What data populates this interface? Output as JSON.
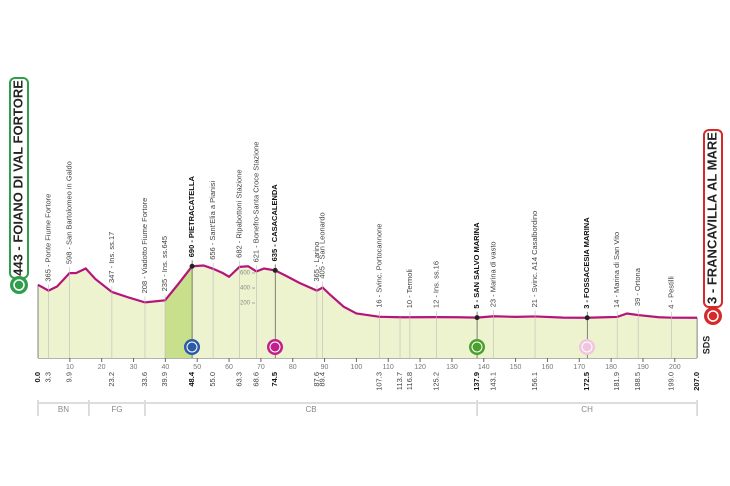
{
  "chart_data": {
    "type": "area",
    "start_label": "443 - FOIANO DI VAL FORTORE",
    "finish_label": "3 - FRANCAVILLA AL MARE",
    "brand": "SDS",
    "color": "#b5157a",
    "fill": "#eef3cf",
    "climb_fill": "#c8df8c",
    "x": [
      0,
      3.3,
      6,
      9.9,
      12,
      15,
      18,
      23.2,
      28,
      33.6,
      39.9,
      44,
      48.4,
      52,
      55,
      58,
      60,
      63.3,
      66,
      68.6,
      71,
      74.5,
      78,
      82,
      87.6,
      89.4,
      92,
      96,
      100,
      107.3,
      113.7,
      116.8,
      125.2,
      132,
      137.9,
      143.1,
      150,
      156.1,
      165,
      172.5,
      178,
      181.9,
      185,
      188.5,
      195,
      199,
      207
    ],
    "values": [
      443,
      365,
      420,
      598,
      600,
      660,
      520,
      347,
      280,
      208,
      235,
      450,
      690,
      700,
      656,
      600,
      550,
      682,
      690,
      621,
      660,
      635,
      560,
      470,
      365,
      405,
      300,
      150,
      60,
      16,
      10,
      10,
      12,
      10,
      5,
      23,
      15,
      21,
      5,
      3,
      10,
      14,
      60,
      39,
      10,
      4,
      3
    ],
    "yticks": [
      200,
      400,
      600
    ],
    "xticks": [
      10,
      20,
      30,
      40,
      50,
      60,
      70,
      80,
      90,
      100,
      110,
      120,
      130,
      140,
      150,
      160,
      170,
      180,
      190,
      200
    ],
    "points": [
      {
        "km": {
          "value": 0,
          "label": "0.0"
        },
        "major": true
      },
      {
        "km": 3.3,
        "label": "365 - Ponte Fiume Fortore"
      },
      {
        "km": 9.9,
        "label": "598 - San Bartolomeo in Galdo"
      },
      {
        "km": 23.2,
        "label": "347 - Ins. ss.17"
      },
      {
        "km": 33.6,
        "label": "208 - Viadotto Fiume Fortore"
      },
      {
        "km": 39.9,
        "label": "235 - Ins. ss.645"
      },
      {
        "km": 48.4,
        "label": "690 - PIETRACATELLA",
        "major": true
      },
      {
        "km": {
          "value": 55,
          "label": "55.0"
        },
        "label": "656 - Sant'Elia a Pianisi"
      },
      {
        "km": 63.3,
        "label": "682 - Ripabottoni Stazione"
      },
      {
        "km": 68.6,
        "label": "621 - Bonefro-Santa Croce Stazione"
      },
      {
        "km": 74.5,
        "label": "635 - CASACALENDA",
        "major": true
      },
      {
        "km": 87.6,
        "label": "365 - Larino"
      },
      {
        "km": 89.4,
        "label": "405 - San Leonardo"
      },
      {
        "km": 107.3,
        "label": "16 - Svinc. Portocannone"
      },
      {
        "km": 113.7
      },
      {
        "km": 116.8,
        "label": "10 - Termoli"
      },
      {
        "km": 125.2,
        "label": "12 - Ins. ss.16"
      },
      {
        "km": 137.9,
        "label": "5 - SAN SALVO MARINA",
        "major": true
      },
      {
        "km": 143.1,
        "label": "23 - Marina di vasto"
      },
      {
        "km": 156.1,
        "label": "21 - Svinc. A14 Casalbordino"
      },
      {
        "km": 172.5,
        "label": "3 - FOSSACESIA MARINA",
        "major": true
      },
      {
        "km": 181.9,
        "label": "14 - Marina di San Vito"
      },
      {
        "km": 188.5,
        "label": "39 - Ortona"
      },
      {
        "km": {
          "value": 199,
          "label": "199.0"
        },
        "label": "4 - Pestilli"
      },
      {
        "km": {
          "value": 207,
          "label": "207.0"
        },
        "major": true
      }
    ],
    "regions": [
      {
        "name": "BN",
        "from": 0,
        "to": 16
      },
      {
        "name": "FG",
        "from": 16,
        "to": 33.6
      },
      {
        "name": "CB",
        "from": 33.6,
        "to": 137.9
      },
      {
        "name": "CH",
        "from": 137.9,
        "to": 207
      }
    ]
  }
}
